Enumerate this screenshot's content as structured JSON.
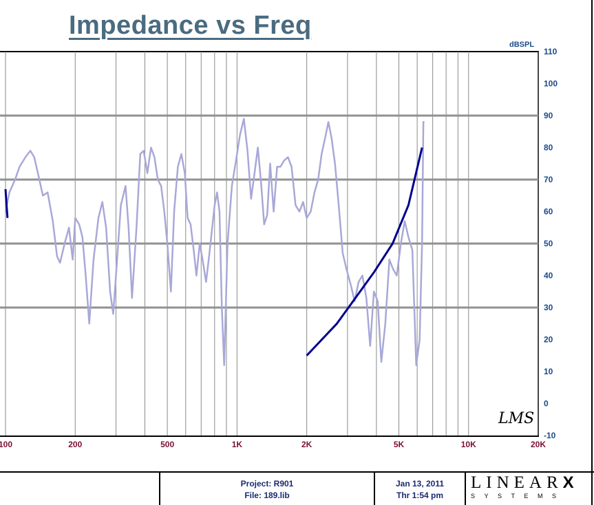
{
  "chart_data": {
    "type": "line",
    "title": "Impedance vs Freq",
    "ylabel": "dBSPL",
    "xscale": "log",
    "xlim": [
      100,
      20000
    ],
    "ylim": [
      -10,
      110
    ],
    "x_ticks": [
      {
        "value": 100,
        "label": "100"
      },
      {
        "value": 200,
        "label": "200"
      },
      {
        "value": 500,
        "label": "500"
      },
      {
        "value": 1000,
        "label": "1K"
      },
      {
        "value": 2000,
        "label": "2K"
      },
      {
        "value": 5000,
        "label": "5K"
      },
      {
        "value": 10000,
        "label": "10K"
      },
      {
        "value": 20000,
        "label": "20K"
      }
    ],
    "y_ticks": [
      -10,
      0,
      10,
      20,
      30,
      40,
      50,
      60,
      70,
      80,
      90,
      100,
      110
    ],
    "major_hlines": [
      30,
      50,
      70,
      90
    ],
    "grid": true,
    "series": [
      {
        "color": "#a8a8d8",
        "points": [
          [
            100,
            60
          ],
          [
            104,
            66
          ],
          [
            110,
            70
          ],
          [
            115,
            74
          ],
          [
            122,
            77
          ],
          [
            128,
            79
          ],
          [
            133,
            77
          ],
          [
            138,
            72
          ],
          [
            145,
            65
          ],
          [
            152,
            66
          ],
          [
            160,
            57
          ],
          [
            167,
            46
          ],
          [
            172,
            44
          ],
          [
            180,
            50
          ],
          [
            188,
            55
          ],
          [
            195,
            45
          ],
          [
            200,
            58
          ],
          [
            208,
            56
          ],
          [
            215,
            52
          ],
          [
            222,
            40
          ],
          [
            230,
            25
          ],
          [
            240,
            45
          ],
          [
            252,
            58
          ],
          [
            262,
            63
          ],
          [
            272,
            55
          ],
          [
            283,
            35
          ],
          [
            292,
            28
          ],
          [
            300,
            40
          ],
          [
            315,
            62
          ],
          [
            330,
            68
          ],
          [
            340,
            55
          ],
          [
            352,
            33
          ],
          [
            368,
            55
          ],
          [
            382,
            78
          ],
          [
            395,
            79
          ],
          [
            410,
            72
          ],
          [
            425,
            80
          ],
          [
            440,
            77
          ],
          [
            455,
            70
          ],
          [
            470,
            68
          ],
          [
            485,
            60
          ],
          [
            500,
            50
          ],
          [
            518,
            35
          ],
          [
            535,
            60
          ],
          [
            555,
            74
          ],
          [
            575,
            78
          ],
          [
            595,
            72
          ],
          [
            612,
            58
          ],
          [
            630,
            56
          ],
          [
            650,
            48
          ],
          [
            668,
            40
          ],
          [
            690,
            50
          ],
          [
            710,
            45
          ],
          [
            735,
            38
          ],
          [
            760,
            47
          ],
          [
            800,
            62
          ],
          [
            820,
            66
          ],
          [
            840,
            60
          ],
          [
            860,
            30
          ],
          [
            880,
            12
          ],
          [
            910,
            50
          ],
          [
            950,
            68
          ],
          [
            990,
            76
          ],
          [
            1030,
            84
          ],
          [
            1070,
            89
          ],
          [
            1110,
            79
          ],
          [
            1150,
            64
          ],
          [
            1190,
            72
          ],
          [
            1230,
            80
          ],
          [
            1270,
            69
          ],
          [
            1310,
            56
          ],
          [
            1350,
            59
          ],
          [
            1390,
            75
          ],
          [
            1440,
            60
          ],
          [
            1490,
            74
          ],
          [
            1540,
            74
          ],
          [
            1600,
            76
          ],
          [
            1660,
            77
          ],
          [
            1720,
            74
          ],
          [
            1790,
            62
          ],
          [
            1860,
            60
          ],
          [
            1930,
            63
          ],
          [
            2000,
            58
          ],
          [
            2080,
            60
          ],
          [
            2160,
            66
          ],
          [
            2240,
            70
          ],
          [
            2320,
            78
          ],
          [
            2400,
            83
          ],
          [
            2480,
            88
          ],
          [
            2560,
            83
          ],
          [
            2650,
            75
          ],
          [
            2750,
            62
          ],
          [
            2860,
            47
          ],
          [
            2970,
            42
          ],
          [
            3100,
            37
          ],
          [
            3220,
            32
          ],
          [
            3350,
            38
          ],
          [
            3480,
            40
          ],
          [
            3620,
            33
          ],
          [
            3760,
            18
          ],
          [
            3900,
            35
          ],
          [
            4050,
            32
          ],
          [
            4200,
            13
          ],
          [
            4370,
            25
          ],
          [
            4550,
            45
          ],
          [
            4720,
            42
          ],
          [
            4900,
            40
          ],
          [
            5100,
            50
          ],
          [
            5300,
            57
          ],
          [
            5500,
            52
          ],
          [
            5720,
            48
          ],
          [
            5940,
            12
          ],
          [
            6150,
            20
          ],
          [
            6300,
            50
          ],
          [
            6380,
            88
          ],
          [
            6450,
            88
          ]
        ]
      },
      {
        "color": "#00008b",
        "points": [
          [
            2000,
            15
          ],
          [
            2700,
            25
          ],
          [
            3900,
            41
          ],
          [
            4700,
            50
          ],
          [
            5500,
            62
          ],
          [
            6300,
            80
          ]
        ]
      },
      {
        "color": "#00008b",
        "points": [
          [
            100,
            67
          ],
          [
            101,
            62
          ],
          [
            102,
            58
          ]
        ]
      }
    ],
    "annotations": [
      "LMS"
    ]
  },
  "footer": {
    "project": "Project: R901",
    "file": "File: 189.lib",
    "date": "Jan 13, 2011",
    "time": "Thr  1:54 pm",
    "brand_top": "LINEAR",
    "brand_x": "X",
    "brand_bottom": "SYSTEMS"
  }
}
